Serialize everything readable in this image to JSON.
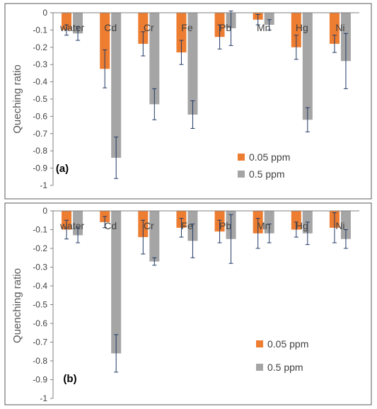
{
  "colors": {
    "series_low": "#ED7D31",
    "series_high": "#A5A5A5",
    "error_bar": "#1F3864",
    "axis": "#7F7F7F",
    "panel_border": "#595959"
  },
  "chart_data": [
    {
      "type": "bar",
      "panel_label": "(a)",
      "ylabel": "Queching ratio",
      "categories": [
        "water",
        "Cd",
        "Cr",
        "Fe",
        "Pb",
        "Mn",
        "Hg",
        "Ni"
      ],
      "ylim": [
        -1,
        0
      ],
      "yticks": [
        "0",
        "-0.1",
        "-0.2",
        "-0.3",
        "-0.4",
        "-0.5",
        "-0.6",
        "-0.7",
        "-0.8",
        "-0.9",
        "-1"
      ],
      "grid": false,
      "legend_position": "bottom-right",
      "series": [
        {
          "name": "0.05 ppm",
          "color": "#ED7D31",
          "values": [
            -0.1,
            -0.325,
            -0.18,
            -0.23,
            -0.14,
            -0.04,
            -0.2,
            -0.18
          ],
          "errors": [
            0.03,
            0.11,
            0.07,
            0.07,
            0.07,
            0.03,
            0.07,
            0.05
          ]
        },
        {
          "name": "0.5 ppm",
          "color": "#A5A5A5",
          "values": [
            -0.12,
            -0.84,
            -0.53,
            -0.59,
            -0.09,
            -0.07,
            -0.62,
            -0.28
          ],
          "errors": [
            0.04,
            0.12,
            0.09,
            0.08,
            0.1,
            0.03,
            0.07,
            0.16
          ]
        }
      ]
    },
    {
      "type": "bar",
      "panel_label": "(b)",
      "ylabel": "Quenching ratio",
      "categories": [
        "water",
        "Cd",
        "Cr",
        "Fe",
        "Pb",
        "Mn",
        "Hg",
        "Ni"
      ],
      "ylim": [
        -1,
        0
      ],
      "yticks": [
        "0",
        "-0.1",
        "-0.2",
        "-0.3",
        "-0.4",
        "-0.5",
        "-0.6",
        "-0.7",
        "-0.8",
        "-0.9",
        "-1"
      ],
      "grid": false,
      "legend_position": "bottom-right",
      "series": [
        {
          "name": "0.05 ppm",
          "color": "#ED7D31",
          "values": [
            -0.1,
            -0.06,
            -0.14,
            -0.09,
            -0.11,
            -0.12,
            -0.1,
            -0.09
          ],
          "errors": [
            0.05,
            0.03,
            0.09,
            0.05,
            0.06,
            0.08,
            0.04,
            0.08
          ]
        },
        {
          "name": "0.5 ppm",
          "color": "#A5A5A5",
          "values": [
            -0.13,
            -0.76,
            -0.27,
            -0.16,
            -0.15,
            -0.12,
            -0.12,
            -0.15
          ],
          "errors": [
            0.04,
            0.1,
            0.02,
            0.09,
            0.13,
            0.05,
            0.06,
            0.05
          ]
        }
      ]
    }
  ]
}
